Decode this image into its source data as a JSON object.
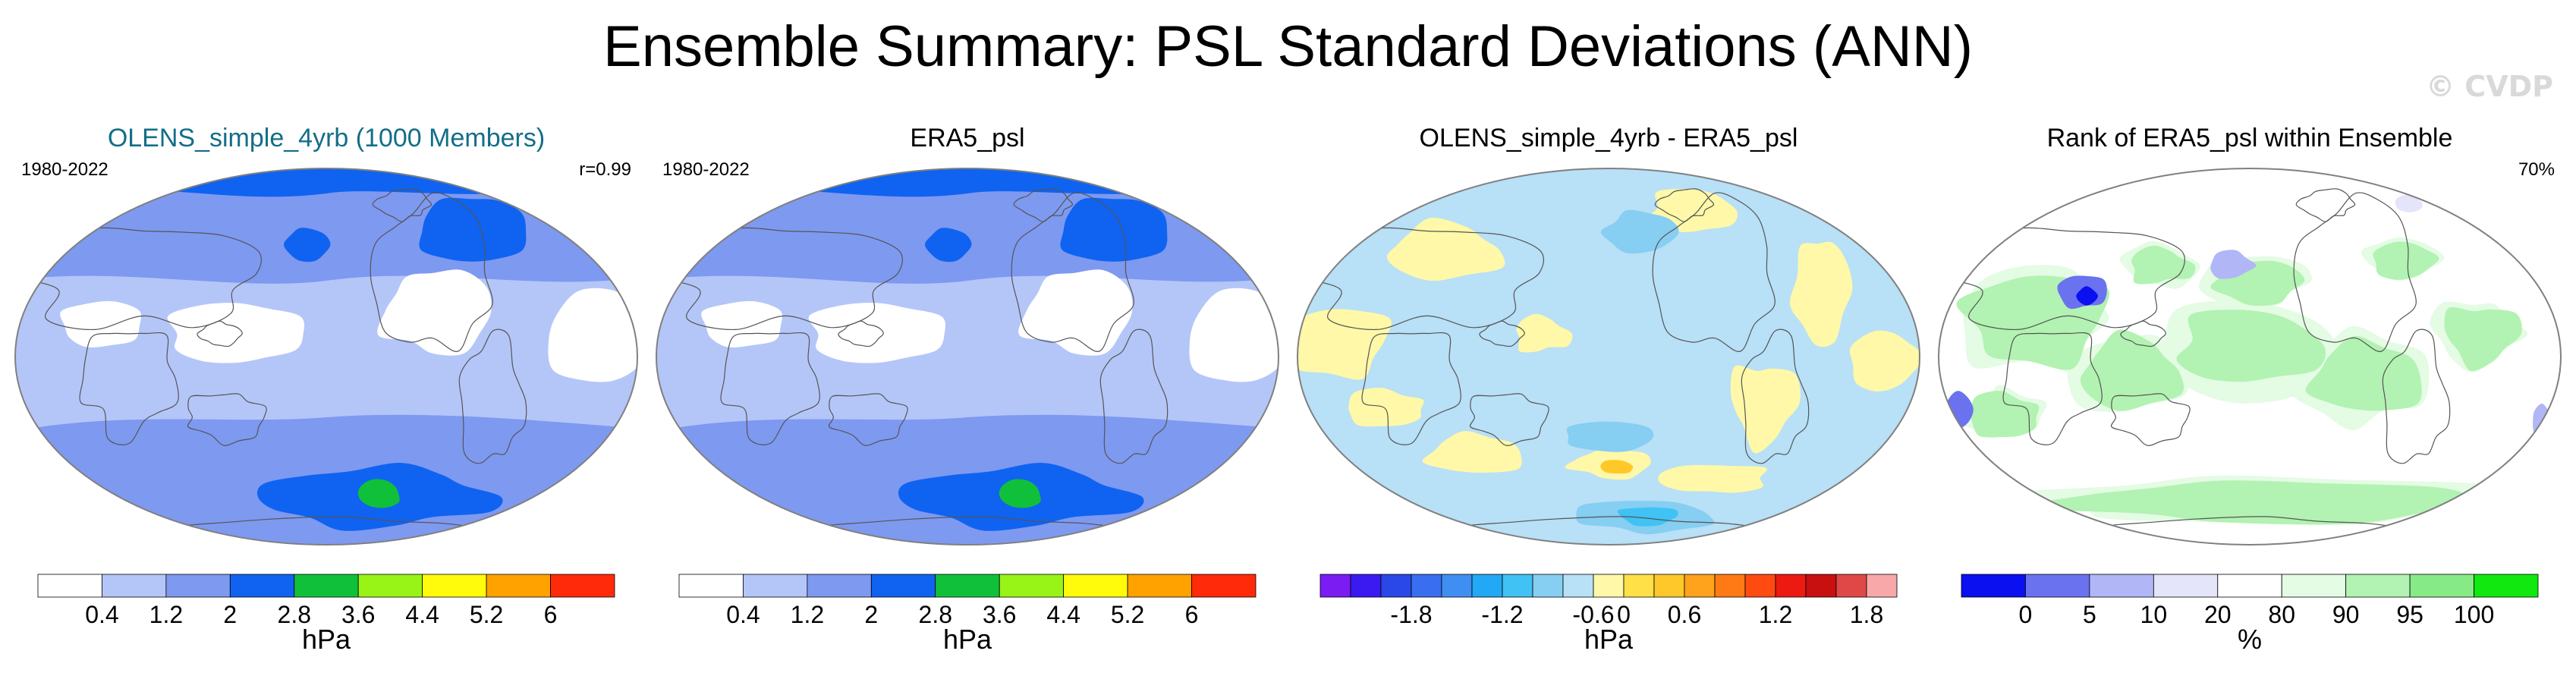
{
  "title": "Ensemble Summary: PSL Standard Deviations (ANN)",
  "watermark": "© CVDP",
  "panels": [
    {
      "id": "olens",
      "title": "OLENS_simple_4yrb (1000 Members)",
      "title_color": "#136e88",
      "left_label": "1980-2022",
      "right_label": "r=0.99",
      "map_type": "stddev",
      "colorbar": {
        "colors": [
          "#ffffff",
          "#b4c6f8",
          "#7e99f0",
          "#0f63f0",
          "#11c03a",
          "#98f417",
          "#fffb0a",
          "#ffa200",
          "#ff2a0a"
        ],
        "tick_labels": [
          "0.4",
          "1.2",
          "2",
          "2.8",
          "3.6",
          "4.4",
          "5.2",
          "6"
        ],
        "unit": "hPa"
      }
    },
    {
      "id": "era5",
      "title": "ERA5_psl",
      "title_color": "#000000",
      "left_label": "1980-2022",
      "right_label": "",
      "map_type": "stddev",
      "colorbar": {
        "colors": [
          "#ffffff",
          "#b4c6f8",
          "#7e99f0",
          "#0f63f0",
          "#11c03a",
          "#98f417",
          "#fffb0a",
          "#ffa200",
          "#ff2a0a"
        ],
        "tick_labels": [
          "0.4",
          "1.2",
          "2",
          "2.8",
          "3.6",
          "4.4",
          "5.2",
          "6"
        ],
        "unit": "hPa"
      }
    },
    {
      "id": "diff",
      "title": "OLENS_simple_4yrb - ERA5_psl",
      "title_color": "#000000",
      "left_label": "",
      "right_label": "",
      "map_type": "difference",
      "colorbar": {
        "colors": [
          "#7a1cf2",
          "#3a1af0",
          "#2a48e8",
          "#3a6ef0",
          "#3f8ff2",
          "#22a8f4",
          "#40c2f4",
          "#86cef2",
          "#b8e0f6",
          "#fff8a8",
          "#ffe046",
          "#ffc82a",
          "#ffa21c",
          "#ff7a14",
          "#ff4a10",
          "#ec1a10",
          "#c81010",
          "#e04848",
          "#f8a8a8"
        ],
        "tick_labels": [
          "-1.8",
          "-1.2",
          "-0.6",
          "0",
          "0.6",
          "1.2",
          "1.8"
        ],
        "tick_index": [
          2,
          5,
          8,
          9,
          11,
          14,
          17
        ],
        "unit": "hPa"
      }
    },
    {
      "id": "rank",
      "title": "Rank of ERA5_psl within Ensemble",
      "title_color": "#000000",
      "left_label": "",
      "right_label": "70%",
      "map_type": "rank",
      "colorbar": {
        "colors": [
          "#0a10f0",
          "#6a72f0",
          "#b0b6f6",
          "#e4e4fa",
          "#ffffff",
          "#e4fbe4",
          "#b2f2b2",
          "#86ea86",
          "#10e810"
        ],
        "tick_labels": [
          "0",
          "5",
          "10",
          "20",
          "80",
          "90",
          "95",
          "100"
        ],
        "unit": "%"
      }
    }
  ]
}
